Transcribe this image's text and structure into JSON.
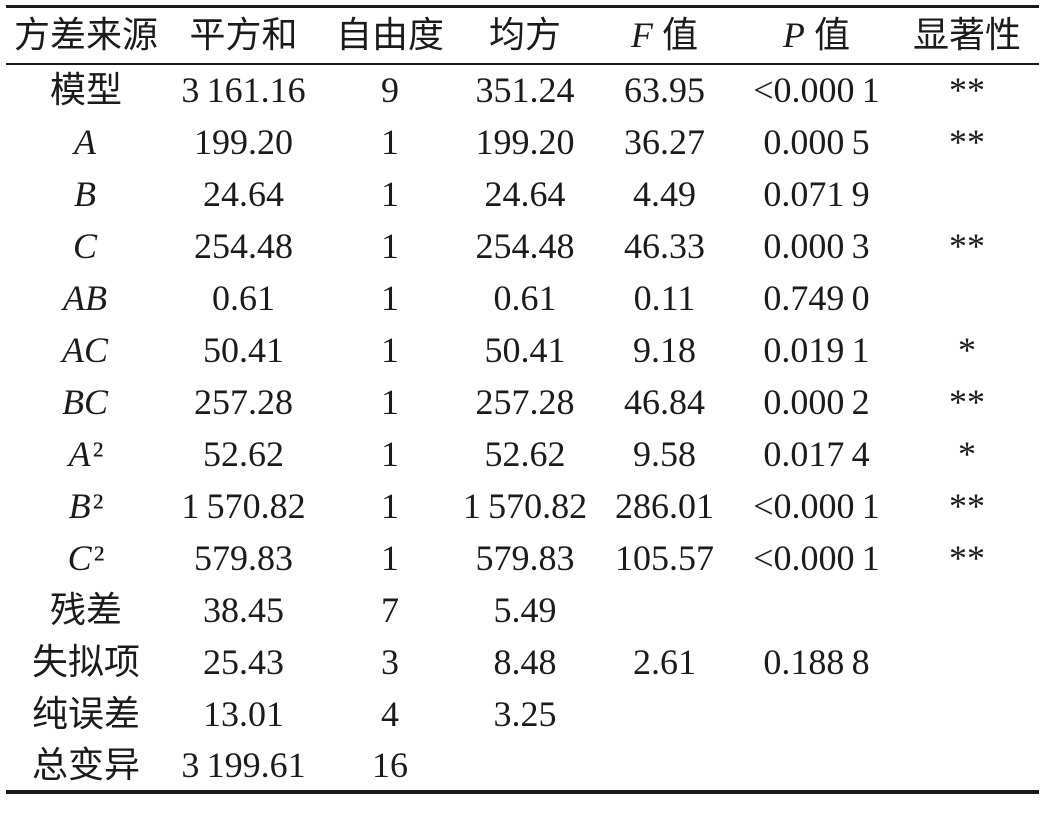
{
  "table": {
    "title": "anova-variance-analysis",
    "headers": [
      "方差来源",
      "平方和",
      "自由度",
      "均方",
      "F 值",
      "P 值",
      "显著性"
    ],
    "rows": [
      [
        "模型",
        "3 161.16",
        "9",
        "351.24",
        "63.95",
        "<0.000 1",
        "**"
      ],
      [
        "A",
        "199.20",
        "1",
        "199.20",
        "36.27",
        "0.000 5",
        "**"
      ],
      [
        "B",
        "24.64",
        "1",
        "24.64",
        "4.49",
        "0.071 9",
        ""
      ],
      [
        "C",
        "254.48",
        "1",
        "254.48",
        "46.33",
        "0.000 3",
        "**"
      ],
      [
        "AB",
        "0.61",
        "1",
        "0.61",
        "0.11",
        "0.749 0",
        ""
      ],
      [
        "AC",
        "50.41",
        "1",
        "50.41",
        "9.18",
        "0.019 1",
        "*"
      ],
      [
        "BC",
        "257.28",
        "1",
        "257.28",
        "46.84",
        "0.000 2",
        "**"
      ],
      [
        "A²",
        "52.62",
        "1",
        "52.62",
        "9.58",
        "0.017 4",
        "*"
      ],
      [
        "B²",
        "1 570.82",
        "1",
        "1 570.82",
        "286.01",
        "<0.000 1",
        "**"
      ],
      [
        "C²",
        "579.83",
        "1",
        "579.83",
        "105.57",
        "<0.000 1",
        "**"
      ],
      [
        "残差",
        "38.45",
        "7",
        "5.49",
        "",
        "",
        ""
      ],
      [
        "失拟项",
        "25.43",
        "3",
        "8.48",
        "2.61",
        "0.188 8",
        ""
      ],
      [
        "纯误差",
        "13.01",
        "4",
        "3.25",
        "",
        "",
        ""
      ],
      [
        "总变异",
        "3 199.61",
        "16",
        "",
        "",
        "",
        ""
      ]
    ],
    "colors": {
      "text": "#1b1b1b",
      "rule": "#1a1a1a",
      "background": "#ffffff"
    }
  }
}
